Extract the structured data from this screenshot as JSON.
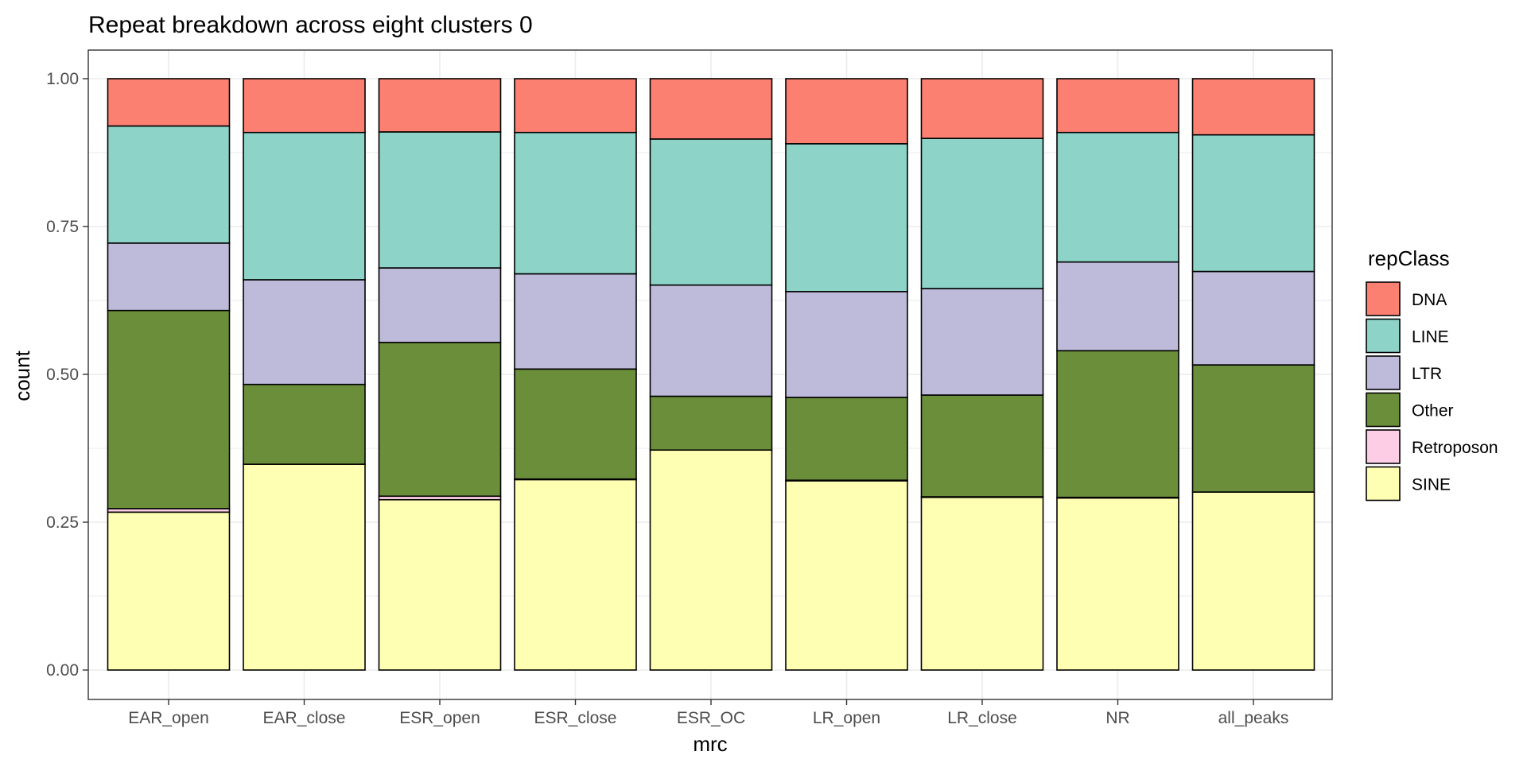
{
  "chart_data": {
    "type": "bar",
    "stacked": true,
    "normalized": true,
    "title": "Repeat breakdown across eight clusters 0",
    "xlabel": "mrc",
    "ylabel": "count",
    "ylim": [
      0,
      1
    ],
    "yticks": [
      "0.00",
      "0.25",
      "0.50",
      "0.75",
      "1.00"
    ],
    "categories": [
      "EAR_open",
      "EAR_close",
      "ESR_open",
      "ESR_close",
      "ESR_OC",
      "LR_open",
      "LR_close",
      "NR",
      "all_peaks"
    ],
    "series": [
      {
        "name": "SINE",
        "color": "#FFFFB3",
        "values": [
          0.267,
          0.348,
          0.288,
          0.322,
          0.372,
          0.32,
          0.292,
          0.291,
          0.301
        ]
      },
      {
        "name": "Retroposon",
        "color": "#FCCDE5",
        "values": [
          0.006,
          0.0,
          0.006,
          0.001,
          0.0,
          0.001,
          0.001,
          0.001,
          0.0
        ]
      },
      {
        "name": "Other",
        "color": "#6B8E3B",
        "values": [
          0.335,
          0.135,
          0.26,
          0.186,
          0.091,
          0.14,
          0.172,
          0.248,
          0.215
        ]
      },
      {
        "name": "LTR",
        "color": "#BEBADA",
        "values": [
          0.114,
          0.177,
          0.126,
          0.161,
          0.188,
          0.179,
          0.18,
          0.15,
          0.158
        ]
      },
      {
        "name": "LINE",
        "color": "#8DD3C7",
        "values": [
          0.198,
          0.249,
          0.23,
          0.239,
          0.247,
          0.25,
          0.254,
          0.219,
          0.231
        ]
      },
      {
        "name": "DNA",
        "color": "#FB8072",
        "values": [
          0.08,
          0.091,
          0.09,
          0.091,
          0.102,
          0.11,
          0.101,
          0.091,
          0.095
        ]
      }
    ],
    "legend": {
      "title": "repClass",
      "position": "right",
      "order": [
        "DNA",
        "LINE",
        "LTR",
        "Other",
        "Retroposon",
        "SINE"
      ]
    },
    "grid": true
  }
}
